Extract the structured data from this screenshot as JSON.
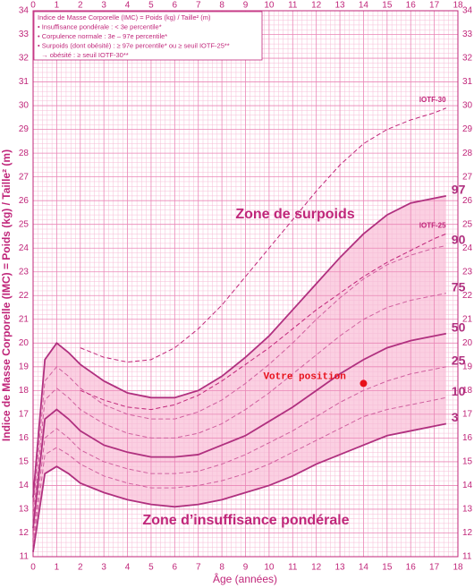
{
  "chart_data": {
    "type": "line",
    "legend_box": [
      "Indice de Masse Corporelle (IMC) = Poids (kg) / Taille² (m)",
      "• Insuffisance pondérale : < 3e percentile*",
      "• Corpulence normale : 3e – 97e percentile*",
      "• Surpoids (dont obésité) : ≥ 97e percentile* ou ≥ seuil IOTF-25**",
      "  → obésité : ≥ seuil IOTF-30**"
    ],
    "x_label": "Âge (années)",
    "y_label": "Indice de Masse Corporelle (IMC) = Poids (kg) / Taille² (m)",
    "annotations": [
      "Zone de surpoids",
      "Zone d’insuffisance pondérale"
    ],
    "x": [
      0,
      0.5,
      1,
      1.5,
      2,
      3,
      4,
      5,
      6,
      7,
      8,
      9,
      10,
      11,
      12,
      13,
      14,
      15,
      16,
      17,
      17.5
    ],
    "series": [
      {
        "name": "97",
        "color": "#b0307f",
        "dashed": false,
        "values": [
          13.5,
          19.3,
          20.0,
          19.6,
          19.1,
          18.4,
          17.9,
          17.7,
          17.7,
          18.0,
          18.6,
          19.4,
          20.3,
          21.4,
          22.5,
          23.6,
          24.6,
          25.4,
          25.9,
          26.1,
          26.2
        ]
      },
      {
        "name": "90",
        "color": "#d0609f",
        "dashed": true,
        "values": [
          13.0,
          18.4,
          19.0,
          18.6,
          18.1,
          17.4,
          17.0,
          16.8,
          16.8,
          17.1,
          17.6,
          18.3,
          19.1,
          20.0,
          21.0,
          21.9,
          22.7,
          23.3,
          23.7,
          24.0,
          24.1
        ]
      },
      {
        "name": "75",
        "color": "#d0609f",
        "dashed": true,
        "values": [
          12.6,
          17.6,
          18.1,
          17.7,
          17.2,
          16.6,
          16.2,
          16.0,
          16.0,
          16.2,
          16.6,
          17.2,
          17.9,
          18.7,
          19.5,
          20.3,
          21.0,
          21.5,
          21.8,
          22.0,
          22.1
        ]
      },
      {
        "name": "50",
        "color": "#b0307f",
        "dashed": false,
        "values": [
          12.2,
          16.8,
          17.2,
          16.8,
          16.3,
          15.7,
          15.4,
          15.2,
          15.2,
          15.3,
          15.7,
          16.1,
          16.7,
          17.3,
          18.0,
          18.7,
          19.3,
          19.8,
          20.1,
          20.3,
          20.4
        ]
      },
      {
        "name": "25",
        "color": "#d0609f",
        "dashed": true,
        "values": [
          11.8,
          16.0,
          16.4,
          16.0,
          15.5,
          15.0,
          14.7,
          14.5,
          14.5,
          14.6,
          14.9,
          15.3,
          15.8,
          16.3,
          16.9,
          17.5,
          18.0,
          18.4,
          18.7,
          18.9,
          19.0
        ]
      },
      {
        "name": "10",
        "color": "#d0609f",
        "dashed": true,
        "values": [
          11.5,
          15.3,
          15.6,
          15.3,
          14.9,
          14.4,
          14.1,
          13.9,
          13.9,
          14.0,
          14.2,
          14.5,
          14.9,
          15.4,
          15.9,
          16.4,
          16.9,
          17.2,
          17.4,
          17.6,
          17.7
        ]
      },
      {
        "name": "3",
        "color": "#b0307f",
        "dashed": false,
        "values": [
          11.2,
          14.5,
          14.8,
          14.5,
          14.1,
          13.7,
          13.4,
          13.2,
          13.1,
          13.2,
          13.4,
          13.7,
          14.0,
          14.4,
          14.9,
          15.3,
          15.7,
          16.1,
          16.3,
          16.5,
          16.6
        ]
      },
      {
        "name": "IOTF-25",
        "color": "#c0267a",
        "dashed": true,
        "values": [
          null,
          null,
          null,
          null,
          18.0,
          17.6,
          17.3,
          17.2,
          17.4,
          17.8,
          18.4,
          19.1,
          19.8,
          20.6,
          21.4,
          22.1,
          22.8,
          23.4,
          23.9,
          24.4,
          24.6
        ]
      },
      {
        "name": "IOTF-30",
        "color": "#c0267a",
        "dashed": true,
        "values": [
          null,
          null,
          null,
          null,
          19.8,
          19.4,
          19.2,
          19.3,
          19.8,
          20.6,
          21.6,
          22.8,
          24.0,
          25.2,
          26.4,
          27.5,
          28.4,
          29.0,
          29.4,
          29.7,
          29.9
        ]
      }
    ],
    "marker": {
      "label": "Votre position",
      "x": 14,
      "y": 18.3,
      "color": "#e8101a"
    },
    "band_color": "#fbd0e2",
    "grid": true,
    "xlim": [
      0,
      18
    ],
    "ylim": [
      11,
      34
    ],
    "xticks": [
      0,
      1,
      2,
      3,
      4,
      5,
      6,
      7,
      8,
      9,
      10,
      11,
      12,
      13,
      14,
      15,
      16,
      17,
      18
    ],
    "yticks": [
      11,
      12,
      13,
      14,
      15,
      16,
      17,
      18,
      19,
      20,
      21,
      22,
      23,
      24,
      25,
      26,
      27,
      28,
      29,
      30,
      31,
      32,
      33,
      34
    ]
  }
}
